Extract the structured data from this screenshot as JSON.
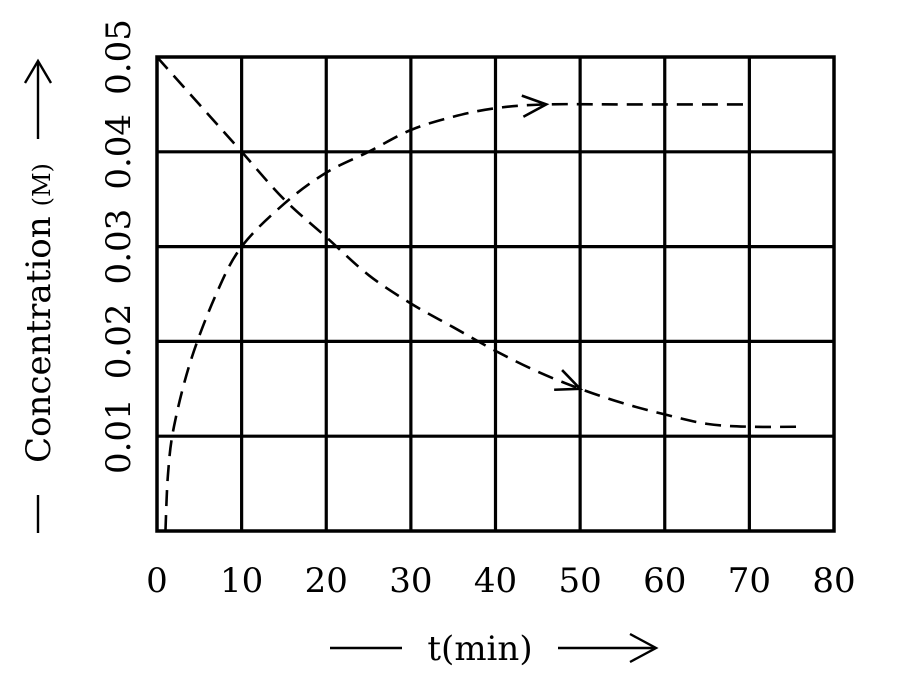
{
  "chart_data": {
    "type": "line",
    "xlabel": "t(min)",
    "ylabel": "Concentration",
    "ylabel_unit": "(M)",
    "xlim": [
      0,
      80
    ],
    "ylim": [
      0,
      0.05
    ],
    "x_ticks": [
      "0",
      "10",
      "20",
      "30",
      "40",
      "50",
      "60",
      "70",
      "80"
    ],
    "y_ticks": [
      "0.01",
      "0.02",
      "0.03",
      "0.04",
      "0.05"
    ],
    "grid": true,
    "legend": "none",
    "series": [
      {
        "style": "dashed",
        "x": [
          1,
          1.3,
          2,
          4,
          7,
          10,
          15,
          20,
          25,
          30,
          35,
          40,
          46,
          55,
          70
        ],
        "y": [
          0,
          0.006,
          0.011,
          0.018,
          0.025,
          0.03,
          0.0345,
          0.0378,
          0.04,
          0.0423,
          0.0437,
          0.0446,
          0.045,
          0.045,
          0.045
        ]
      },
      {
        "style": "dashed",
        "x": [
          0,
          5,
          10,
          15,
          20,
          25,
          30,
          35,
          40,
          45,
          50,
          55,
          60,
          65,
          70,
          76
        ],
        "y": [
          0.05,
          0.045,
          0.04,
          0.035,
          0.031,
          0.027,
          0.024,
          0.0215,
          0.019,
          0.0168,
          0.015,
          0.0135,
          0.0123,
          0.0113,
          0.011,
          0.011
        ]
      }
    ]
  }
}
